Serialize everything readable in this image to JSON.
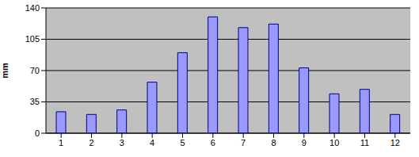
{
  "chart_data": {
    "type": "bar",
    "y_label": "mm",
    "categories": [
      "1",
      "2",
      "3",
      "4",
      "5",
      "6",
      "7",
      "8",
      "9",
      "10",
      "11",
      "12"
    ],
    "values": [
      24,
      21,
      26,
      57,
      90,
      130,
      118,
      122,
      73,
      44,
      49,
      21
    ],
    "color": "#9999ff",
    "ylim": [
      0,
      140
    ],
    "yticks": [
      0,
      35,
      70,
      105,
      140
    ],
    "grid": true
  }
}
